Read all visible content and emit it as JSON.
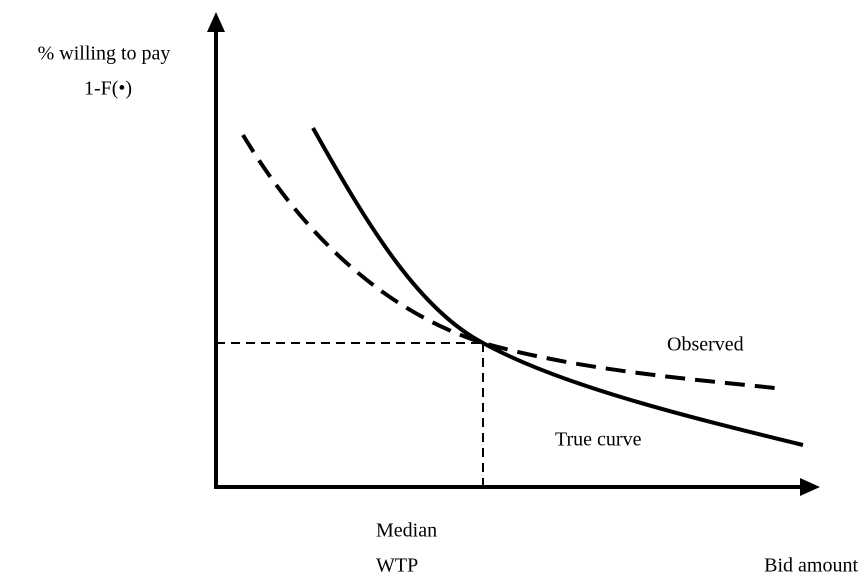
{
  "y_axis_label": [
    "% willing to pay",
    "1-F(•)"
  ],
  "x_axis_label": "Bid amount",
  "median_label": [
    "Median",
    "WTP"
  ],
  "curve_labels": {
    "observed": "Observed",
    "true": "True curve"
  }
}
